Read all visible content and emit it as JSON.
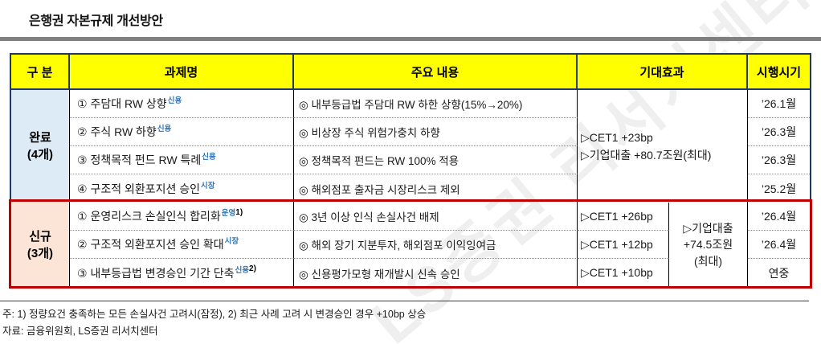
{
  "page": {
    "title": "은행권 자본규제 개선방안"
  },
  "table": {
    "headers": {
      "category": "구 분",
      "task": "과제명",
      "content": "주요 내용",
      "effect": "기대효과",
      "timing": "시행시기"
    },
    "done_group": {
      "label": "완료",
      "count": "(4개)",
      "rows": [
        {
          "task": "① 주담대 RW 상향",
          "sup": "신용",
          "content": "◎ 내부등급법 주담대 RW 하한 상향(15%→20%)",
          "timing": "’26.1월"
        },
        {
          "task": "② 주식 RW 하향",
          "sup": "신용",
          "content": "◎ 비상장 주식 위험가충치 하향",
          "timing": "’26.3월"
        },
        {
          "task": "③ 정책목적 펀드 RW 특례",
          "sup": "신용",
          "content": "◎ 정책목적 펀드는 RW 100% 적용",
          "timing": "’26.3월"
        },
        {
          "task": "④ 구조적 외환포지션 승인",
          "sup": "시장",
          "content": "◎ 해외점포 출자금 시장리스크 제외",
          "timing": "’25.2월"
        }
      ],
      "effect": "▷CET1 +23bp\n▷기업대출 +80.7조원(최대)"
    },
    "new_group": {
      "label": "신규",
      "count": "(3개)",
      "rows": [
        {
          "task": "① 운영리스크 손실인식 합리화",
          "sup": "운영",
          "note": "1)",
          "content": "◎ 3년 이상 인식 손실사건 배제",
          "effect": "▷CET1 +26bp",
          "timing": "’26.4월"
        },
        {
          "task": "② 구조적 외환포지션 승인 확대",
          "sup": "시장",
          "content": "◎ 해외 장기 지분투자, 해외점포 이익잉여금",
          "effect": "▷CET1 +12bp",
          "timing": "’26.4월"
        },
        {
          "task": "③ 내부등급법 변경승인 기간 단축",
          "sup": "신용",
          "note": "2)",
          "content": "◎ 신용평가모형 재개발시 신속 승인",
          "effect": "▷CET1 +10bp",
          "timing": "연중"
        }
      ],
      "merged_effect": "▷기업대출\n+74.5조원\n(최대)"
    }
  },
  "footer": {
    "note": "주: 1) 정량요건 충족하는 모든 손실사건 고려시(잠정), 2) 최근 사례 고려 시 변경승인 경우 +10bp 상승",
    "source": "자료: 금융위원회, LS증권 리서치센터"
  },
  "watermark": "LS증권 리서치센터",
  "colors": {
    "header_bg": "#FFFF00",
    "done_group_bg": "#DDEBF7",
    "new_group_bg": "#FCE4D6",
    "border_navy": "#1F3864",
    "highlight_red": "#C00000",
    "superscript_blue": "#2E75B6"
  }
}
